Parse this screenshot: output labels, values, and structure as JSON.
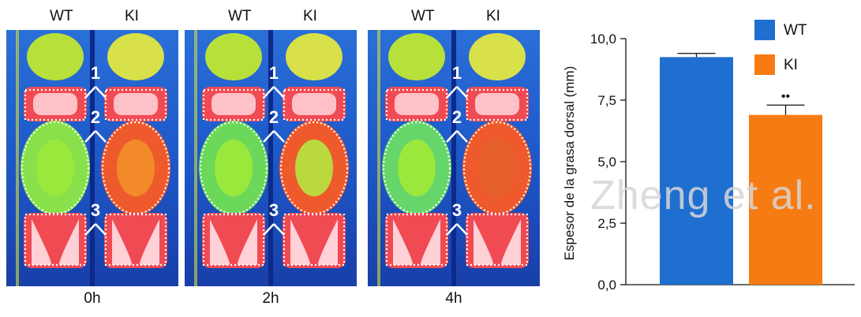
{
  "figure": {
    "watermark_text": "Zheng et al.",
    "thermal_panels": [
      {
        "time_label": "0h",
        "left_label": "WT",
        "right_label": "KI",
        "region_labels": [
          "1",
          "2",
          "3"
        ]
      },
      {
        "time_label": "2h",
        "left_label": "WT",
        "right_label": "KI",
        "region_labels": [
          "1",
          "2",
          "3"
        ]
      },
      {
        "time_label": "4h",
        "left_label": "WT",
        "right_label": "KI",
        "region_labels": [
          "1",
          "2",
          "3"
        ]
      }
    ]
  },
  "chart_data": {
    "type": "bar",
    "title": "",
    "xlabel": "",
    "ylabel": "Espesor de la grasa dorsal (mm)",
    "ylim": [
      0,
      10
    ],
    "yticks": [
      "0,0",
      "2,5",
      "5,0",
      "7,5",
      "10,0"
    ],
    "ytick_values": [
      0,
      2.5,
      5,
      7.5,
      10
    ],
    "grid": false,
    "legend_position": "top-right",
    "series": [
      {
        "name": "WT",
        "value": 9.25,
        "error": 0.15,
        "color": "#1f6fd1",
        "significance": ""
      },
      {
        "name": "KI",
        "value": 6.9,
        "error": 0.4,
        "color": "#f77b13",
        "significance": "••"
      }
    ]
  }
}
